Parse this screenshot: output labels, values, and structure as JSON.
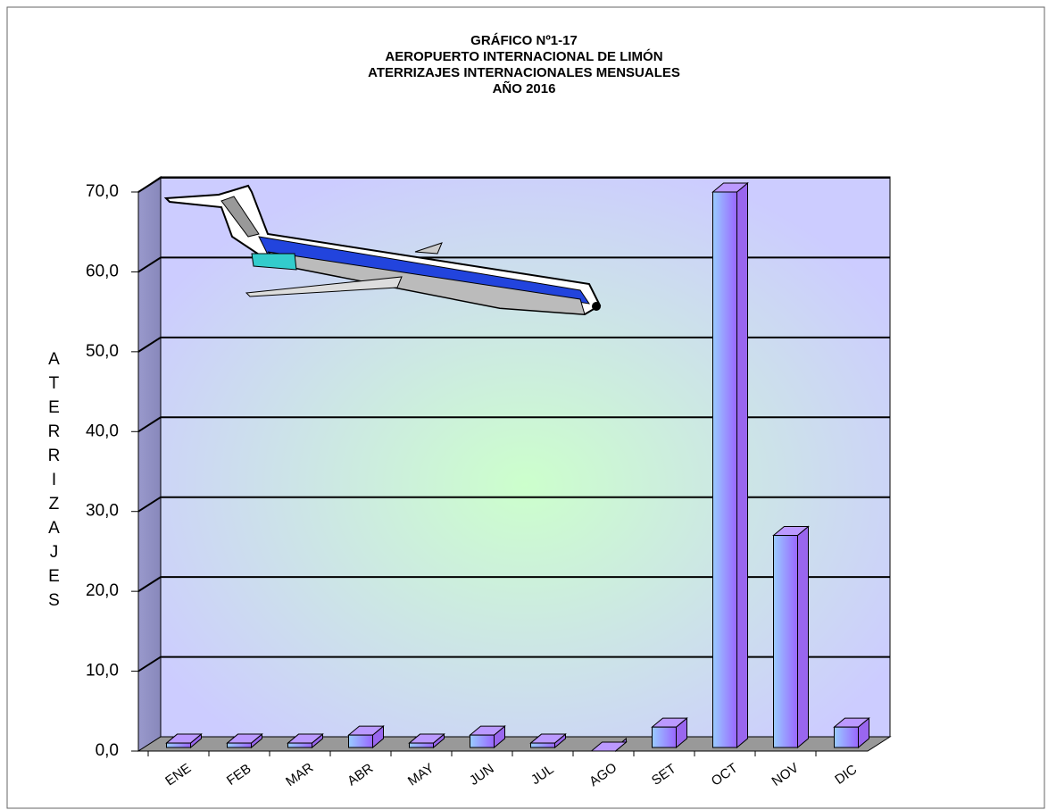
{
  "chart_data": {
    "type": "bar3d",
    "title": [
      "GRÁFICO Nº1-17",
      "AEROPUERTO INTERNACIONAL DE LIMÓN",
      "ATERRIZAJES INTERNACIONALES MENSUALES",
      "AÑO 2016"
    ],
    "y_label": "ATERRIZAJES",
    "categories": [
      "ENE",
      "FEB",
      "MAR",
      "ABR",
      "MAY",
      "JUN",
      "JUL",
      "AGO",
      "SET",
      "OCT",
      "NOV",
      "DIC"
    ],
    "values": [
      1,
      1,
      1,
      2,
      1,
      2,
      1,
      0,
      3,
      70,
      27,
      3
    ],
    "ylim": [
      0,
      70
    ],
    "yticks": [
      {
        "value": 0,
        "label": "0,0"
      },
      {
        "value": 10,
        "label": "10,0"
      },
      {
        "value": 20,
        "label": "20,0"
      },
      {
        "value": 30,
        "label": "30,0"
      },
      {
        "value": 40,
        "label": "40,0"
      },
      {
        "value": 50,
        "label": "50,0"
      },
      {
        "value": 60,
        "label": "60,0"
      },
      {
        "value": 70,
        "label": "70,0"
      }
    ],
    "grid": true
  }
}
